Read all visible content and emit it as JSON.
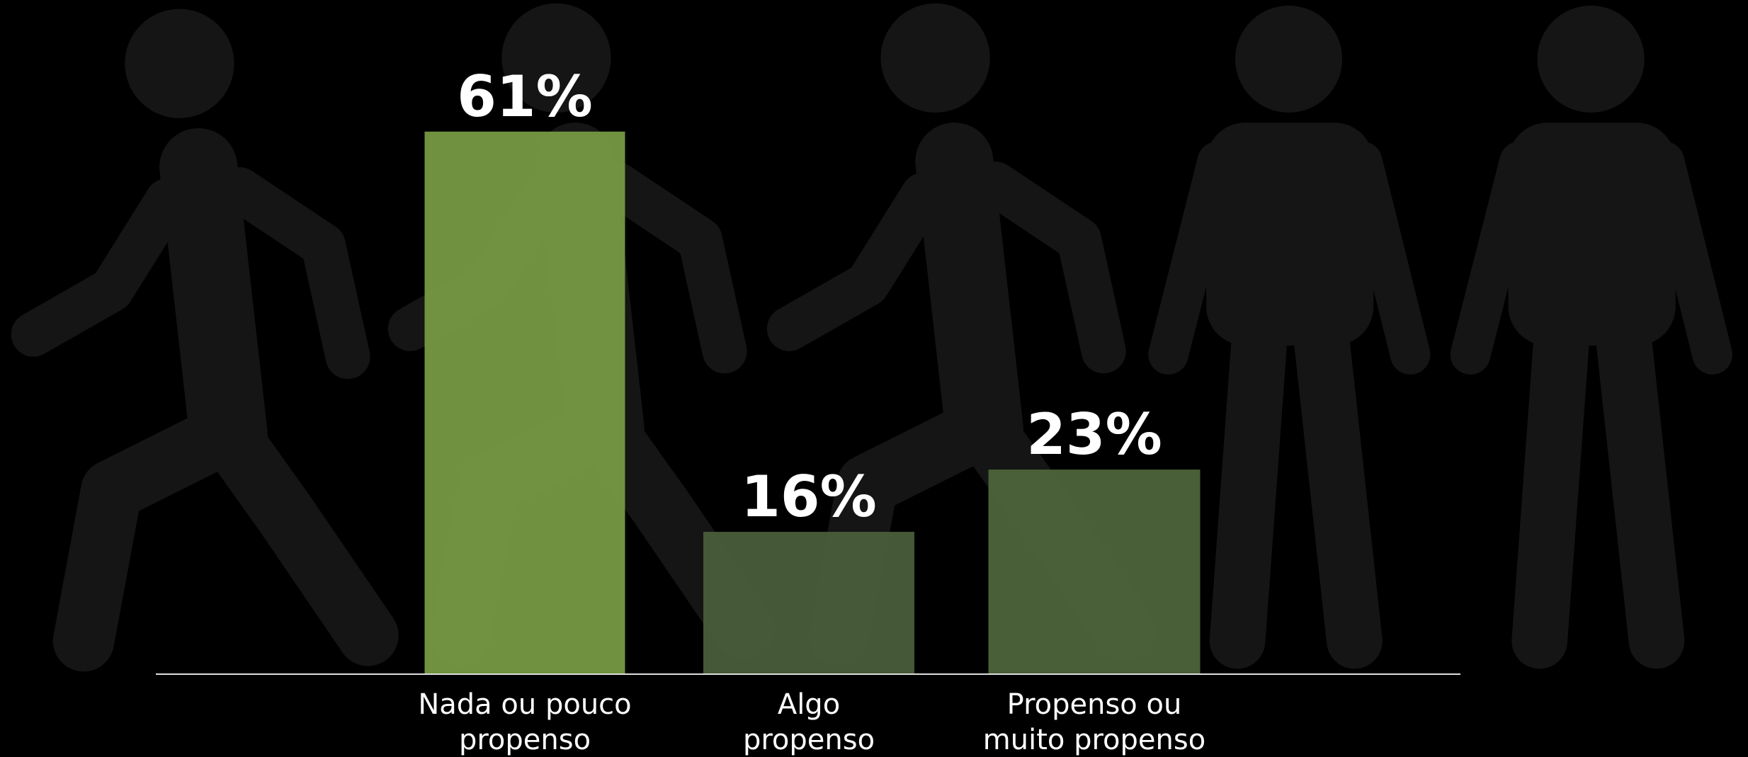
{
  "chart_data": {
    "type": "bar",
    "categories": [
      "Nada ou pouco propenso",
      "Algo propenso",
      "Propenso ou muito propenso"
    ],
    "values": [
      61,
      16,
      23
    ],
    "value_labels": [
      "61%",
      "16%",
      "23%"
    ],
    "colors": [
      "#7a9d45",
      "#4b5f3c",
      "#4f673c"
    ]
  }
}
